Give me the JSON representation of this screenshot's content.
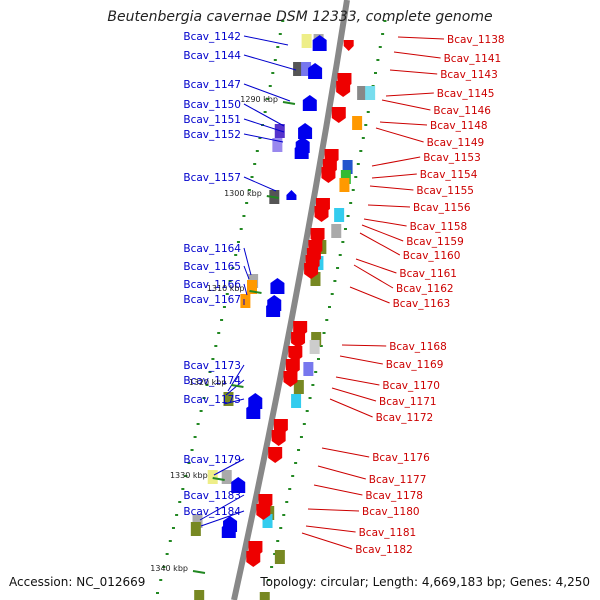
{
  "title": "Beutenbergia cavernae DSM 12333, complete genome",
  "accession_text": "Accession: NC_012669",
  "summary_text": "Topology: circular; Length: 4,669,183 bp; Genes: 4,250",
  "colors": {
    "left_label": "#0000cc",
    "right_label": "#cc0000",
    "forward_gene": "#0000ee",
    "reverse_gene": "#ee0000",
    "backbone": "#888888",
    "tick": "#228822"
  },
  "scale_labels": [
    "1290 kbp",
    "1300 kbp",
    "1310 kbp",
    "1320 kbp",
    "1330 kbp",
    "1340 kbp"
  ],
  "left_genes": [
    "Bcav_1142",
    "Bcav_1144",
    "Bcav_1147",
    "Bcav_1150",
    "Bcav_1151",
    "Bcav_1152",
    "Bcav_1157",
    "Bcav_1164",
    "Bcav_1165",
    "Bcav_1166",
    "Bcav_1167",
    "Bcav_1173",
    "Bcav_1174",
    "Bcav_1175",
    "Bcav_1179",
    "Bcav_1183",
    "Bcav_1184"
  ],
  "right_genes": [
    "Bcav_1138",
    "Bcav_1141",
    "Bcav_1143",
    "Bcav_1145",
    "Bcav_1146",
    "Bcav_1148",
    "Bcav_1149",
    "Bcav_1153",
    "Bcav_1154",
    "Bcav_1155",
    "Bcav_1156",
    "Bcav_1158",
    "Bcav_1159",
    "Bcav_1160",
    "Bcav_1161",
    "Bcav_1162",
    "Bcav_1163",
    "Bcav_1168",
    "Bcav_1169",
    "Bcav_1170",
    "Bcav_1171",
    "Bcav_1172",
    "Bcav_1176",
    "Bcav_1177",
    "Bcav_1178",
    "Bcav_1180",
    "Bcav_1181",
    "Bcav_1182"
  ]
}
